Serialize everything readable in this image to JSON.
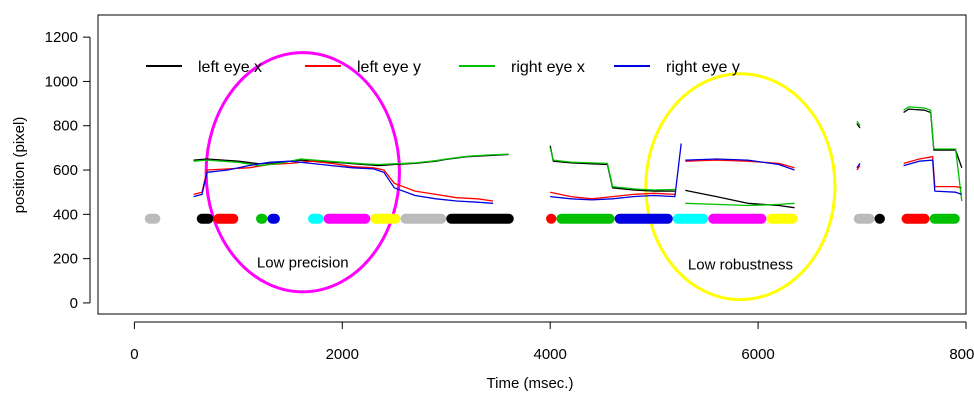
{
  "chart_data": {
    "type": "line",
    "title": "",
    "xlabel": "Time (msec.)",
    "ylabel": "position (pixel)",
    "xlim": [
      -350,
      8000
    ],
    "ylim": [
      -50,
      1300
    ],
    "x_ticks": [
      0,
      2000,
      4000,
      6000,
      8000
    ],
    "x_tick_labels": [
      "0",
      "2000",
      "4000",
      "6000",
      "8000"
    ],
    "y_ticks": [
      0,
      200,
      400,
      600,
      800,
      1000,
      1200
    ],
    "y_tick_labels": [
      "0",
      "200",
      "400",
      "600",
      "800",
      "1000",
      "1200"
    ],
    "grid": false,
    "legend_position": "top-left",
    "series": [
      {
        "name": "left eye x",
        "color": "#000000",
        "segments": [
          [
            [
              570,
              645
            ],
            [
              700,
              650
            ],
            [
              1000,
              640
            ],
            [
              1200,
              628
            ],
            [
              1400,
              635
            ],
            [
              1600,
              645
            ],
            [
              1800,
              638
            ],
            [
              2000,
              632
            ],
            [
              2200,
              625
            ],
            [
              2350,
              620
            ],
            [
              2500,
              625
            ],
            [
              2700,
              630
            ],
            [
              2900,
              640
            ],
            [
              3000,
              648
            ],
            [
              3200,
              660
            ],
            [
              3400,
              665
            ],
            [
              3600,
              670
            ]
          ],
          [
            [
              4000,
              710
            ],
            [
              4030,
              640
            ],
            [
              4200,
              632
            ],
            [
              4400,
              628
            ],
            [
              4550,
              625
            ],
            [
              4600,
              520
            ],
            [
              4800,
              510
            ],
            [
              5000,
              505
            ],
            [
              5200,
              505
            ]
          ],
          [
            [
              5300,
              508
            ],
            [
              5600,
              480
            ],
            [
              5900,
              450
            ],
            [
              6200,
              440
            ],
            [
              6350,
              430
            ]
          ],
          [
            [
              6950,
              810
            ],
            [
              6980,
              790
            ]
          ],
          [
            [
              7400,
              860
            ],
            [
              7450,
              875
            ],
            [
              7600,
              870
            ],
            [
              7660,
              860
            ],
            [
              7690,
              690
            ],
            [
              7900,
              690
            ],
            [
              7960,
              610
            ]
          ]
        ]
      },
      {
        "name": "left eye y",
        "color": "#ff0000",
        "segments": [
          [
            [
              570,
              490
            ],
            [
              650,
              500
            ],
            [
              700,
              600
            ],
            [
              900,
              605
            ],
            [
              1100,
              610
            ],
            [
              1300,
              625
            ],
            [
              1500,
              630
            ],
            [
              1700,
              640
            ],
            [
              1900,
              630
            ],
            [
              2100,
              615
            ],
            [
              2300,
              610
            ],
            [
              2400,
              600
            ],
            [
              2500,
              540
            ],
            [
              2700,
              505
            ],
            [
              2900,
              490
            ],
            [
              3100,
              475
            ],
            [
              3300,
              470
            ],
            [
              3450,
              460
            ]
          ],
          [
            [
              4000,
              500
            ],
            [
              4200,
              480
            ],
            [
              4400,
              470
            ],
            [
              4600,
              480
            ],
            [
              4800,
              490
            ],
            [
              5000,
              495
            ],
            [
              5200,
              490
            ]
          ],
          [
            [
              5300,
              640
            ],
            [
              5600,
              645
            ],
            [
              5900,
              640
            ],
            [
              6200,
              630
            ],
            [
              6350,
              610
            ]
          ],
          [
            [
              6950,
              600
            ],
            [
              6980,
              620
            ]
          ],
          [
            [
              7400,
              630
            ],
            [
              7550,
              650
            ],
            [
              7680,
              660
            ],
            [
              7700,
              525
            ],
            [
              7900,
              525
            ],
            [
              7960,
              520
            ]
          ]
        ]
      },
      {
        "name": "right eye x",
        "color": "#00c000",
        "segments": [
          [
            [
              570,
              640
            ],
            [
              700,
              645
            ],
            [
              1000,
              635
            ],
            [
              1200,
              620
            ],
            [
              1400,
              630
            ],
            [
              1600,
              650
            ],
            [
              1800,
              642
            ],
            [
              2000,
              635
            ],
            [
              2200,
              628
            ],
            [
              2350,
              625
            ],
            [
              2500,
              628
            ],
            [
              2700,
              632
            ],
            [
              2900,
              642
            ],
            [
              3000,
              650
            ],
            [
              3200,
              662
            ],
            [
              3400,
              668
            ],
            [
              3600,
              672
            ]
          ],
          [
            [
              4000,
              700
            ],
            [
              4030,
              645
            ],
            [
              4200,
              636
            ],
            [
              4400,
              632
            ],
            [
              4550,
              630
            ],
            [
              4600,
              525
            ],
            [
              4800,
              515
            ],
            [
              5000,
              510
            ],
            [
              5200,
              512
            ]
          ],
          [
            [
              5300,
              450
            ],
            [
              5600,
              445
            ],
            [
              5900,
              440
            ],
            [
              6200,
              445
            ],
            [
              6350,
              450
            ]
          ],
          [
            [
              6950,
              820
            ],
            [
              6980,
              800
            ]
          ],
          [
            [
              7400,
              870
            ],
            [
              7450,
              885
            ],
            [
              7600,
              880
            ],
            [
              7660,
              870
            ],
            [
              7690,
              695
            ],
            [
              7900,
              695
            ],
            [
              7960,
              460
            ]
          ]
        ]
      },
      {
        "name": "right eye y",
        "color": "#0000e0",
        "segments": [
          [
            [
              570,
              480
            ],
            [
              650,
              490
            ],
            [
              700,
              590
            ],
            [
              900,
              600
            ],
            [
              1100,
              620
            ],
            [
              1300,
              635
            ],
            [
              1500,
              640
            ],
            [
              1700,
              630
            ],
            [
              1900,
              620
            ],
            [
              2100,
              610
            ],
            [
              2300,
              605
            ],
            [
              2400,
              590
            ],
            [
              2500,
              520
            ],
            [
              2700,
              485
            ],
            [
              2900,
              470
            ],
            [
              3100,
              460
            ],
            [
              3300,
              455
            ],
            [
              3450,
              450
            ]
          ],
          [
            [
              4000,
              480
            ],
            [
              4200,
              470
            ],
            [
              4400,
              465
            ],
            [
              4600,
              470
            ],
            [
              4800,
              480
            ],
            [
              5000,
              485
            ],
            [
              5200,
              480
            ],
            [
              5260,
              720
            ]
          ],
          [
            [
              5300,
              645
            ],
            [
              5600,
              650
            ],
            [
              5900,
              645
            ],
            [
              6200,
              625
            ],
            [
              6350,
              600
            ]
          ],
          [
            [
              6950,
              610
            ],
            [
              6980,
              630
            ]
          ],
          [
            [
              7400,
              620
            ],
            [
              7550,
              640
            ],
            [
              7680,
              645
            ],
            [
              7700,
              505
            ],
            [
              7900,
              500
            ],
            [
              7960,
              490
            ]
          ]
        ]
      }
    ],
    "event_bars": {
      "y": 380,
      "segments": [
        {
          "x0": 100,
          "x1": 250,
          "color": "#bbbbbb"
        },
        {
          "x0": 600,
          "x1": 760,
          "color": "#000000"
        },
        {
          "x0": 760,
          "x1": 1000,
          "color": "#ff0000"
        },
        {
          "x0": 1170,
          "x1": 1280,
          "color": "#00c000"
        },
        {
          "x0": 1280,
          "x1": 1400,
          "color": "#0000e0"
        },
        {
          "x0": 1670,
          "x1": 1820,
          "color": "#00ffff"
        },
        {
          "x0": 1820,
          "x1": 2270,
          "color": "#ff00ff"
        },
        {
          "x0": 2270,
          "x1": 2560,
          "color": "#ffff00"
        },
        {
          "x0": 2560,
          "x1": 3000,
          "color": "#bbbbbb"
        },
        {
          "x0": 3000,
          "x1": 3650,
          "color": "#000000"
        },
        {
          "x0": 3960,
          "x1": 4060,
          "color": "#ff0000"
        },
        {
          "x0": 4060,
          "x1": 4620,
          "color": "#00c000"
        },
        {
          "x0": 4620,
          "x1": 5180,
          "color": "#0000e0"
        },
        {
          "x0": 5180,
          "x1": 5520,
          "color": "#00ffff"
        },
        {
          "x0": 5520,
          "x1": 6080,
          "color": "#ff00ff"
        },
        {
          "x0": 6080,
          "x1": 6380,
          "color": "#ffff00"
        },
        {
          "x0": 6920,
          "x1": 7120,
          "color": "#bbbbbb"
        },
        {
          "x0": 7120,
          "x1": 7220,
          "color": "#000000"
        },
        {
          "x0": 7380,
          "x1": 7650,
          "color": "#ff0000"
        },
        {
          "x0": 7650,
          "x1": 7940,
          "color": "#00c000"
        }
      ]
    },
    "annotations": [
      {
        "label": "Low precision",
        "shape": "circle",
        "color": "#ff00ff",
        "cx": 1620,
        "cy": 590,
        "rx": 930,
        "ry": 540,
        "label_x": 1620,
        "label_y": 160
      },
      {
        "label": "Low robustness",
        "shape": "circle",
        "color": "#ffff00",
        "cx": 5830,
        "cy": 525,
        "rx": 910,
        "ry": 510,
        "label_x": 5830,
        "label_y": 150
      }
    ]
  }
}
